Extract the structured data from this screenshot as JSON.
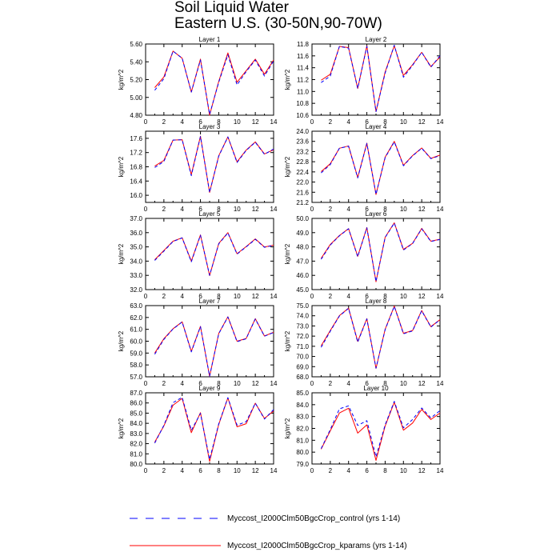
{
  "figure": {
    "title_line1": "Soil Liquid Water",
    "title_line2": "Eastern U.S. (30-50N,90-70W)"
  },
  "legend": [
    {
      "label": "Myccost_I2000Clm50BgcCrop_control (yrs 1-14)",
      "color": "#0000ff",
      "dash": true
    },
    {
      "label": "Myccost_I2000Clm50BgcCrop_kparams (yrs 1-14)",
      "color": "#ff0000",
      "dash": false
    }
  ],
  "chart_data": [
    {
      "type": "line",
      "title": "Layer 1",
      "ylabel": "kg/m^2",
      "x": [
        1,
        2,
        3,
        4,
        5,
        6,
        7,
        8,
        9,
        10,
        11,
        12,
        13,
        14
      ],
      "xlim": [
        0,
        14
      ],
      "xticks": [
        0,
        2,
        4,
        6,
        8,
        10,
        12,
        14
      ],
      "ylim": [
        4.8,
        5.6
      ],
      "yticks": [
        "4.80",
        "5.00",
        "5.20",
        "5.40",
        "5.60"
      ],
      "series": [
        {
          "name": "Myccost_I2000Clm50BgcCrop_control (yrs 1-14)",
          "color": "#0000ff",
          "values": [
            5.08,
            5.21,
            5.52,
            5.44,
            5.06,
            5.42,
            4.81,
            5.17,
            5.48,
            5.14,
            5.29,
            5.42,
            5.24,
            5.41
          ]
        },
        {
          "name": "Myccost_I2000Clm50BgcCrop_kparams (yrs 1-14)",
          "color": "#ff0000",
          "values": [
            5.11,
            5.23,
            5.52,
            5.44,
            5.06,
            5.43,
            4.8,
            5.18,
            5.5,
            5.17,
            5.3,
            5.43,
            5.26,
            5.42
          ]
        }
      ]
    },
    {
      "type": "line",
      "title": "Layer 2",
      "ylabel": "kg/m^2",
      "x": [
        1,
        2,
        3,
        4,
        5,
        6,
        7,
        8,
        9,
        10,
        11,
        12,
        13,
        14
      ],
      "xlim": [
        0,
        14
      ],
      "xticks": [
        0,
        2,
        4,
        6,
        8,
        10,
        12,
        14
      ],
      "ylim": [
        10.6,
        11.8
      ],
      "yticks": [
        "10.6",
        "10.8",
        "11.0",
        "11.2",
        "11.4",
        "11.6",
        "11.8"
      ],
      "series": [
        {
          "name": "Myccost_I2000Clm50BgcCrop_control (yrs 1-14)",
          "color": "#0000ff",
          "values": [
            11.15,
            11.26,
            11.76,
            11.73,
            11.05,
            11.76,
            10.66,
            11.31,
            11.78,
            11.24,
            11.44,
            11.66,
            11.41,
            11.6
          ]
        },
        {
          "name": "Myccost_I2000Clm50BgcCrop_kparams (yrs 1-14)",
          "color": "#ff0000",
          "values": [
            11.19,
            11.29,
            11.76,
            11.74,
            11.05,
            11.77,
            10.66,
            11.33,
            11.77,
            11.27,
            11.45,
            11.66,
            11.42,
            11.58
          ]
        }
      ]
    },
    {
      "type": "line",
      "title": "Layer 3",
      "ylabel": "kg/m^2",
      "x": [
        1,
        2,
        3,
        4,
        5,
        6,
        7,
        8,
        9,
        10,
        11,
        12,
        13,
        14
      ],
      "xlim": [
        0,
        14
      ],
      "xticks": [
        0,
        2,
        4,
        6,
        8,
        10,
        12,
        14
      ],
      "ylim": [
        15.8,
        17.8
      ],
      "yticks": [
        "16.0",
        "16.4",
        "16.8",
        "17.2",
        "17.6"
      ],
      "series": [
        {
          "name": "Myccost_I2000Clm50BgcCrop_control (yrs 1-14)",
          "color": "#0000ff",
          "values": [
            16.78,
            16.95,
            17.55,
            17.56,
            16.55,
            17.65,
            16.08,
            17.1,
            17.64,
            16.92,
            17.26,
            17.49,
            17.15,
            17.3
          ]
        },
        {
          "name": "Myccost_I2000Clm50BgcCrop_kparams (yrs 1-14)",
          "color": "#ff0000",
          "values": [
            16.82,
            16.98,
            17.55,
            17.56,
            16.58,
            17.66,
            16.08,
            17.11,
            17.64,
            16.94,
            17.27,
            17.5,
            17.16,
            17.28
          ]
        }
      ]
    },
    {
      "type": "line",
      "title": "Layer 4",
      "ylabel": "kg/m^2",
      "x": [
        1,
        2,
        3,
        4,
        5,
        6,
        7,
        8,
        9,
        10,
        11,
        12,
        13,
        14
      ],
      "xlim": [
        0,
        14
      ],
      "xticks": [
        0,
        2,
        4,
        6,
        8,
        10,
        12,
        14
      ],
      "ylim": [
        21.2,
        24.0
      ],
      "yticks": [
        "21.2",
        "21.6",
        "22.0",
        "22.4",
        "22.8",
        "23.2",
        "23.6",
        "24.0"
      ],
      "series": [
        {
          "name": "Myccost_I2000Clm50BgcCrop_control (yrs 1-14)",
          "color": "#0000ff",
          "values": [
            22.36,
            22.69,
            23.33,
            23.41,
            22.16,
            23.52,
            21.52,
            22.96,
            23.58,
            22.64,
            23.03,
            23.33,
            22.92,
            23.04
          ]
        },
        {
          "name": "Myccost_I2000Clm50BgcCrop_kparams (yrs 1-14)",
          "color": "#ff0000",
          "values": [
            22.41,
            22.72,
            23.33,
            23.42,
            22.18,
            23.53,
            21.51,
            22.98,
            23.6,
            22.66,
            23.04,
            23.34,
            22.93,
            23.06
          ]
        }
      ]
    },
    {
      "type": "line",
      "title": "Layer 5",
      "ylabel": "kg/m^2",
      "x": [
        1,
        2,
        3,
        4,
        5,
        6,
        7,
        8,
        9,
        10,
        11,
        12,
        13,
        14
      ],
      "xlim": [
        0,
        14
      ],
      "xticks": [
        0,
        2,
        4,
        6,
        8,
        10,
        12,
        14
      ],
      "ylim": [
        32.0,
        37.0
      ],
      "yticks": [
        "32.0",
        "33.0",
        "34.0",
        "35.0",
        "36.0",
        "37.0"
      ],
      "series": [
        {
          "name": "Myccost_I2000Clm50BgcCrop_control (yrs 1-14)",
          "color": "#0000ff",
          "values": [
            34.05,
            34.7,
            35.38,
            35.63,
            33.95,
            35.82,
            33.0,
            35.21,
            35.98,
            34.49,
            35.0,
            35.53,
            34.97,
            35.11
          ]
        },
        {
          "name": "Myccost_I2000Clm50BgcCrop_kparams (yrs 1-14)",
          "color": "#ff0000",
          "values": [
            34.1,
            34.75,
            35.4,
            35.64,
            34.0,
            35.84,
            32.98,
            35.24,
            36.0,
            34.52,
            35.02,
            35.56,
            34.99,
            35.12
          ]
        }
      ]
    },
    {
      "type": "line",
      "title": "Layer 6",
      "ylabel": "kg/m^2",
      "x": [
        1,
        2,
        3,
        4,
        5,
        6,
        7,
        8,
        9,
        10,
        11,
        12,
        13,
        14
      ],
      "xlim": [
        0,
        14
      ],
      "xticks": [
        0,
        2,
        4,
        6,
        8,
        10,
        12,
        14
      ],
      "ylim": [
        45.0,
        50.0
      ],
      "yticks": [
        "45.0",
        "46.0",
        "47.0",
        "48.0",
        "49.0",
        "50.0"
      ],
      "series": [
        {
          "name": "Myccost_I2000Clm50BgcCrop_control (yrs 1-14)",
          "color": "#0000ff",
          "values": [
            47.13,
            48.13,
            48.78,
            49.27,
            47.3,
            49.34,
            45.57,
            48.66,
            49.67,
            47.78,
            48.23,
            49.27,
            48.38,
            48.52
          ]
        },
        {
          "name": "Myccost_I2000Clm50BgcCrop_kparams (yrs 1-14)",
          "color": "#ff0000",
          "values": [
            47.2,
            48.17,
            48.8,
            49.28,
            47.34,
            49.36,
            45.55,
            48.68,
            49.69,
            47.82,
            48.25,
            49.3,
            48.4,
            48.54
          ]
        }
      ]
    },
    {
      "type": "line",
      "title": "Layer 7",
      "ylabel": "kg/m^2",
      "x": [
        1,
        2,
        3,
        4,
        5,
        6,
        7,
        8,
        9,
        10,
        11,
        12,
        13,
        14
      ],
      "xlim": [
        0,
        14
      ],
      "xticks": [
        0,
        2,
        4,
        6,
        8,
        10,
        12,
        14
      ],
      "ylim": [
        57.0,
        63.0
      ],
      "yticks": [
        "57.0",
        "58.0",
        "59.0",
        "60.0",
        "61.0",
        "62.0",
        "63.0"
      ],
      "series": [
        {
          "name": "Myccost_I2000Clm50BgcCrop_control (yrs 1-14)",
          "color": "#0000ff",
          "values": [
            58.9,
            60.15,
            61.03,
            61.62,
            59.1,
            61.23,
            57.05,
            60.63,
            62.04,
            59.96,
            60.21,
            61.87,
            60.42,
            60.73
          ]
        },
        {
          "name": "Myccost_I2000Clm50BgcCrop_kparams (yrs 1-14)",
          "color": "#ff0000",
          "values": [
            59.0,
            60.21,
            61.05,
            61.63,
            59.14,
            61.25,
            57.03,
            60.66,
            62.06,
            60.0,
            60.23,
            61.9,
            60.44,
            60.75
          ]
        }
      ]
    },
    {
      "type": "line",
      "title": "Layer 8",
      "ylabel": "kg/m^2",
      "x": [
        1,
        2,
        3,
        4,
        5,
        6,
        7,
        8,
        9,
        10,
        11,
        12,
        13,
        14
      ],
      "xlim": [
        0,
        14
      ],
      "xticks": [
        0,
        2,
        4,
        6,
        8,
        10,
        12,
        14
      ],
      "ylim": [
        68.0,
        75.0
      ],
      "yticks": [
        "68.0",
        "69.0",
        "70.0",
        "71.0",
        "72.0",
        "73.0",
        "74.0",
        "75.0"
      ],
      "series": [
        {
          "name": "Myccost_I2000Clm50BgcCrop_control (yrs 1-14)",
          "color": "#0000ff",
          "values": [
            70.9,
            72.48,
            73.98,
            74.73,
            71.4,
            73.69,
            68.85,
            72.63,
            74.92,
            72.23,
            72.51,
            74.49,
            72.89,
            73.6
          ]
        },
        {
          "name": "Myccost_I2000Clm50BgcCrop_kparams (yrs 1-14)",
          "color": "#ff0000",
          "values": [
            71.05,
            72.55,
            74.02,
            74.75,
            71.48,
            73.72,
            68.82,
            72.68,
            74.95,
            72.28,
            72.55,
            74.52,
            72.93,
            73.62
          ]
        }
      ]
    },
    {
      "type": "line",
      "title": "Layer 9",
      "ylabel": "kg/m^2",
      "x": [
        1,
        2,
        3,
        4,
        5,
        6,
        7,
        8,
        9,
        10,
        11,
        12,
        13,
        14
      ],
      "xlim": [
        0,
        14
      ],
      "xticks": [
        0,
        2,
        4,
        6,
        8,
        10,
        12,
        14
      ],
      "ylim": [
        80.0,
        87.0
      ],
      "yticks": [
        "80.0",
        "81.0",
        "82.0",
        "83.0",
        "84.0",
        "85.0",
        "86.0",
        "87.0"
      ],
      "series": [
        {
          "name": "Myccost_I2000Clm50BgcCrop_control (yrs 1-14)",
          "color": "#0000ff",
          "values": [
            82.05,
            83.81,
            86.03,
            86.56,
            83.31,
            84.97,
            80.45,
            83.95,
            86.53,
            83.82,
            84.16,
            85.98,
            84.42,
            85.35
          ]
        },
        {
          "name": "Myccost_I2000Clm50BgcCrop_kparams (yrs 1-14)",
          "color": "#ff0000",
          "values": [
            82.15,
            83.75,
            85.78,
            86.45,
            83.08,
            85.05,
            80.25,
            83.89,
            86.5,
            83.66,
            83.96,
            85.98,
            84.48,
            85.21
          ]
        }
      ]
    },
    {
      "type": "line",
      "title": "Layer 10",
      "ylabel": "kg/m^2",
      "x": [
        1,
        2,
        3,
        4,
        5,
        6,
        7,
        8,
        9,
        10,
        11,
        12,
        13,
        14
      ],
      "xlim": [
        0,
        14
      ],
      "xticks": [
        0,
        2,
        4,
        6,
        8,
        10,
        12,
        14
      ],
      "ylim": [
        79.0,
        85.0
      ],
      "yticks": [
        "79.0",
        "80.0",
        "81.0",
        "82.0",
        "83.0",
        "84.0",
        "85.0"
      ],
      "series": [
        {
          "name": "Myccost_I2000Clm50BgcCrop_control (yrs 1-14)",
          "color": "#0000ff",
          "values": [
            80.3,
            81.9,
            83.65,
            83.9,
            82.25,
            82.65,
            79.6,
            82.3,
            84.28,
            82.05,
            82.75,
            83.72,
            82.88,
            83.5
          ]
        },
        {
          "name": "Myccost_I2000Clm50BgcCrop_kparams (yrs 1-14)",
          "color": "#ff0000",
          "values": [
            80.25,
            81.8,
            83.3,
            83.7,
            81.6,
            82.3,
            79.3,
            82.2,
            84.2,
            81.85,
            82.45,
            83.6,
            82.75,
            83.3
          ]
        }
      ]
    }
  ]
}
